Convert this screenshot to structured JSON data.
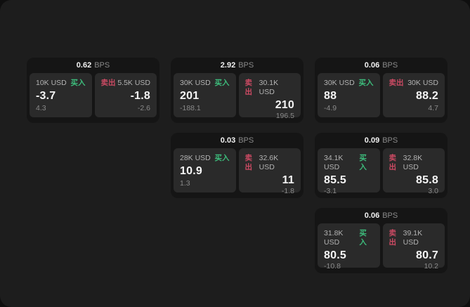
{
  "labels": {
    "bps_unit": "BPS",
    "buy": "买入",
    "sell": "卖出"
  },
  "colors": {
    "buy": "#3dbd7c",
    "sell": "#cb4a63",
    "panel_bg": "#1d1d1d",
    "card_bg": "#151515",
    "tile_bg": "#2a2a2a"
  },
  "cards": [
    {
      "bps": "0.62",
      "buy": {
        "amount": "10K USD",
        "price": "-3.7",
        "delta": "4.3"
      },
      "sell": {
        "amount": "5.5K USD",
        "price": "-1.8",
        "delta": "-2.6"
      }
    },
    {
      "bps": "2.92",
      "buy": {
        "amount": "30K USD",
        "price": "201",
        "delta": "-188.1"
      },
      "sell": {
        "amount": "30.1K USD",
        "price": "210",
        "delta": "196.5"
      }
    },
    {
      "bps": "0.06",
      "buy": {
        "amount": "30K USD",
        "price": "88",
        "delta": "-4.9"
      },
      "sell": {
        "amount": "30K USD",
        "price": "88.2",
        "delta": "4.7"
      }
    },
    {
      "bps": "0.03",
      "buy": {
        "amount": "28K USD",
        "price": "10.9",
        "delta": "1.3"
      },
      "sell": {
        "amount": "32.6K USD",
        "price": "11",
        "delta": "-1.8"
      }
    },
    {
      "bps": "0.09",
      "buy": {
        "amount": "34.1K USD",
        "price": "85.5",
        "delta": "-3.1"
      },
      "sell": {
        "amount": "32.8K USD",
        "price": "85.8",
        "delta": "3.0"
      }
    },
    {
      "bps": "0.06",
      "buy": {
        "amount": "31.8K USD",
        "price": "80.5",
        "delta": "-10.8"
      },
      "sell": {
        "amount": "39.1K USD",
        "price": "80.7",
        "delta": "10.2"
      }
    }
  ]
}
